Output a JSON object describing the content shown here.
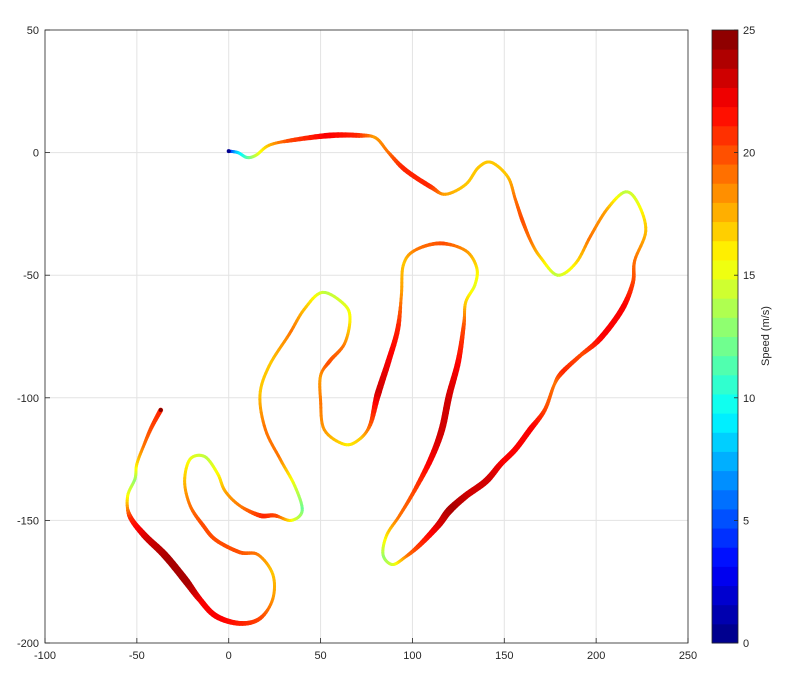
{
  "chart_data": {
    "type": "scatter",
    "title": "",
    "xlabel": "",
    "ylabel": "",
    "xlim": [
      -100,
      250
    ],
    "ylim": [
      -200,
      50
    ],
    "xticks": [
      "-100",
      "-50",
      "0",
      "50",
      "100",
      "150",
      "200",
      "250"
    ],
    "yticks": [
      "-200",
      "-150",
      "-100",
      "-50",
      "0",
      "50"
    ],
    "grid": true,
    "colormap": "jet",
    "colorbar": {
      "label": "Speed (m/s)",
      "range": [
        0,
        25
      ],
      "ticks": [
        "0",
        "5",
        "10",
        "15",
        "20",
        "25"
      ],
      "position": "right"
    },
    "columns": [
      "x",
      "y",
      "speed"
    ],
    "points": [
      [
        0,
        0.6,
        2
      ],
      [
        5,
        0,
        8
      ],
      [
        10,
        -2,
        11
      ],
      [
        15,
        -1,
        14
      ],
      [
        22,
        3,
        17
      ],
      [
        34,
        5,
        20
      ],
      [
        55,
        7,
        22
      ],
      [
        71,
        7,
        21
      ],
      [
        80,
        6,
        18
      ],
      [
        87,
        0,
        19
      ],
      [
        96,
        -7,
        21
      ],
      [
        110,
        -14,
        21
      ],
      [
        118,
        -17,
        18
      ],
      [
        129,
        -13,
        17
      ],
      [
        136,
        -6,
        17
      ],
      [
        143,
        -4,
        17
      ],
      [
        152,
        -10,
        17
      ],
      [
        156,
        -19,
        19
      ],
      [
        160,
        -28,
        20
      ],
      [
        165,
        -37,
        19
      ],
      [
        170,
        -43,
        17
      ],
      [
        179,
        -50,
        14
      ],
      [
        189,
        -45,
        16
      ],
      [
        197,
        -34,
        19
      ],
      [
        206,
        -23,
        18
      ],
      [
        216,
        -16,
        14
      ],
      [
        223,
        -21,
        15
      ],
      [
        227,
        -32,
        17
      ],
      [
        221,
        -44,
        19
      ],
      [
        220,
        -53,
        20
      ],
      [
        214,
        -64,
        22
      ],
      [
        202,
        -76,
        22
      ],
      [
        191,
        -83,
        20
      ],
      [
        181,
        -90,
        21
      ],
      [
        177,
        -95,
        19
      ],
      [
        172,
        -105,
        20
      ],
      [
        164,
        -113,
        22
      ],
      [
        156,
        -121,
        22
      ],
      [
        148,
        -127,
        22
      ],
      [
        140,
        -134,
        23
      ],
      [
        129,
        -140,
        23
      ],
      [
        120,
        -146,
        24
      ],
      [
        114,
        -152,
        23
      ],
      [
        104,
        -160,
        21
      ],
      [
        96,
        -165,
        19
      ],
      [
        89,
        -168,
        15
      ],
      [
        84,
        -164,
        13
      ],
      [
        86,
        -156,
        16
      ],
      [
        93,
        -148,
        19
      ],
      [
        101,
        -138,
        20
      ],
      [
        110,
        -125,
        22
      ],
      [
        116,
        -113,
        23
      ],
      [
        120,
        -99,
        23
      ],
      [
        125,
        -85,
        22
      ],
      [
        128,
        -70,
        20
      ],
      [
        129,
        -61,
        17
      ],
      [
        134,
        -54,
        15
      ],
      [
        135,
        -47,
        16
      ],
      [
        129,
        -40,
        18
      ],
      [
        115,
        -37,
        20
      ],
      [
        101,
        -40,
        19
      ],
      [
        95,
        -46,
        17
      ],
      [
        94,
        -58,
        18
      ],
      [
        92,
        -72,
        21
      ],
      [
        87,
        -85,
        22
      ],
      [
        81,
        -99,
        23
      ],
      [
        77,
        -111,
        20
      ],
      [
        71,
        -117,
        17
      ],
      [
        63,
        -119,
        16
      ],
      [
        52,
        -113,
        18
      ],
      [
        50,
        -101,
        19
      ],
      [
        50,
        -91,
        18
      ],
      [
        55,
        -85,
        20
      ],
      [
        63,
        -78,
        19
      ],
      [
        66,
        -68,
        16
      ],
      [
        63,
        -62,
        15
      ],
      [
        51,
        -57,
        14
      ],
      [
        41,
        -64,
        17
      ],
      [
        33,
        -74,
        19
      ],
      [
        22,
        -87,
        17
      ],
      [
        17,
        -99,
        17
      ],
      [
        20,
        -113,
        19
      ],
      [
        28,
        -125,
        19
      ],
      [
        36,
        -136,
        15
      ],
      [
        40,
        -146,
        12
      ],
      [
        34,
        -150,
        15
      ],
      [
        25,
        -148,
        20
      ],
      [
        17,
        -148,
        21
      ],
      [
        6,
        -144,
        19
      ],
      [
        -2,
        -138,
        18
      ],
      [
        -6,
        -131,
        16
      ],
      [
        -13,
        -124,
        14
      ],
      [
        -21,
        -125,
        15
      ],
      [
        -24,
        -134,
        17
      ],
      [
        -21,
        -144,
        19
      ],
      [
        -14,
        -152,
        20
      ],
      [
        -7,
        -158,
        20
      ],
      [
        6,
        -163,
        20
      ],
      [
        16,
        -164,
        19
      ],
      [
        24,
        -172,
        17
      ],
      [
        24,
        -182,
        18
      ],
      [
        17,
        -190,
        20
      ],
      [
        6,
        -192,
        21
      ],
      [
        -7,
        -189,
        22
      ],
      [
        -16,
        -182,
        22
      ],
      [
        -24,
        -174,
        24
      ],
      [
        -35,
        -164,
        24
      ],
      [
        -46,
        -156,
        23
      ],
      [
        -54,
        -148,
        21
      ],
      [
        -55,
        -140,
        16
      ],
      [
        -51,
        -133,
        13
      ],
      [
        -50,
        -127,
        16
      ],
      [
        -46,
        -119,
        19
      ],
      [
        -42,
        -112,
        20
      ],
      [
        -37,
        -105,
        21
      ]
    ]
  }
}
